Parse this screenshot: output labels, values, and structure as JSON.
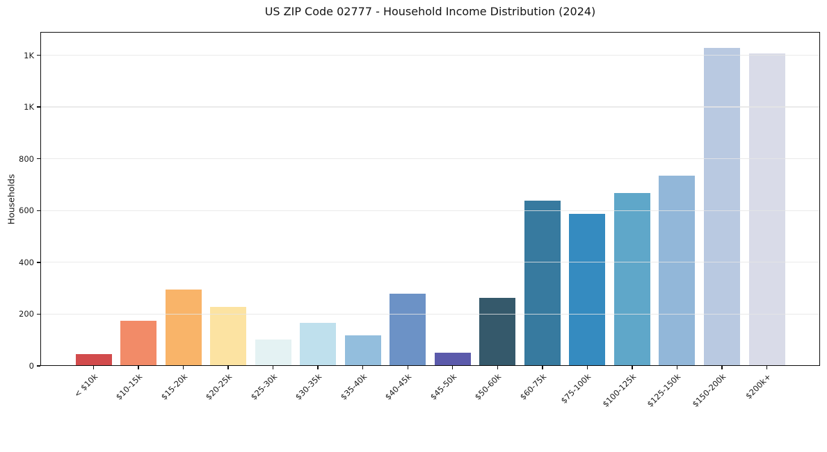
{
  "page": {
    "background": "#ffffff",
    "text_color": "#1a1a1a",
    "grid_color": "#e6e6e6",
    "spine_color": "#0c0c0c"
  },
  "chart_data": {
    "type": "bar",
    "title": "US ZIP Code 02777 - Household Income Distribution (2024)",
    "xlabel": "",
    "ylabel": "Households",
    "legend": "none",
    "grid": "horizontal-y-above-bars",
    "ylim": [
      0,
      1290
    ],
    "categories": [
      "< $10k",
      "$10-15k",
      "$15-20k",
      "$20-25k",
      "$25-30k",
      "$30-35k",
      "$35-40k",
      "$40-45k",
      "$45-50k",
      "$50-60k",
      "$60-75k",
      "$75-100k",
      "$100-125k",
      "$125-150k",
      "$150-200k",
      "$200k+"
    ],
    "values": [
      45,
      175,
      296,
      228,
      102,
      166,
      118,
      280,
      50,
      263,
      637,
      586,
      669,
      736,
      1227,
      1206
    ],
    "bar_colors": [
      "#d24b4c",
      "#f28b68",
      "#f9b469",
      "#fce3a2",
      "#e4f2f3",
      "#bfe0ed",
      "#93bedd",
      "#6c92c6",
      "#5b5aab",
      "#35596b",
      "#377a9f",
      "#358bc0",
      "#5fa7c9",
      "#92b7d9",
      "#b9c9e1",
      "#d9dbe8"
    ],
    "yticks": [
      {
        "value": 0,
        "label": "0"
      },
      {
        "value": 200,
        "label": "200"
      },
      {
        "value": 400,
        "label": "400"
      },
      {
        "value": 600,
        "label": "600"
      },
      {
        "value": 800,
        "label": "800"
      },
      {
        "value": 1000,
        "label": "1K"
      },
      {
        "value": 1200,
        "label": "1K"
      }
    ]
  }
}
